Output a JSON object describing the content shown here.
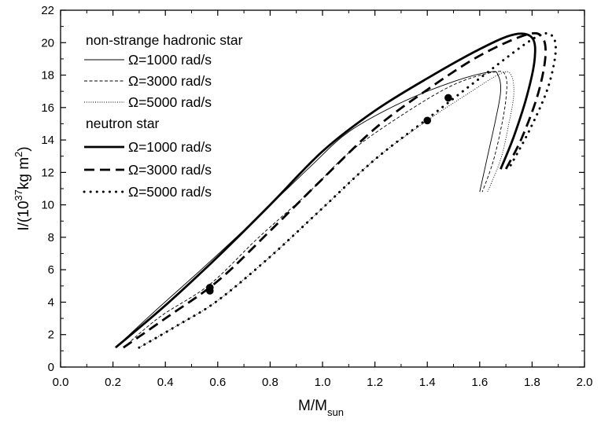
{
  "chart_data": {
    "type": "line",
    "xlabel": {
      "main": "M/M",
      "sub": "sun"
    },
    "ylabel": {
      "prefix": "I/(10",
      "sup1": "37",
      "mid": "kg m",
      "sup2": "2",
      "suffix": ")"
    },
    "xlim": [
      0.0,
      2.0
    ],
    "ylim": [
      0,
      22
    ],
    "xticks": [
      "0.0",
      "0.2",
      "0.4",
      "0.6",
      "0.8",
      "1.0",
      "1.2",
      "1.4",
      "1.6",
      "1.8",
      "2.0"
    ],
    "yticks": [
      "0",
      "2",
      "4",
      "6",
      "8",
      "10",
      "12",
      "14",
      "16",
      "18",
      "20",
      "22"
    ],
    "grid": false,
    "legend_position": "top-left",
    "legend_groups": [
      {
        "title": "non-strange hadronic star",
        "entries": [
          "Ω=1000 rad/s",
          "Ω=3000 rad/s",
          "Ω=5000 rad/s"
        ]
      },
      {
        "title": "neutron star",
        "entries": [
          "Ω=1000 rad/s",
          "Ω=3000 rad/s",
          "Ω=5000 rad/s"
        ]
      }
    ],
    "series": [
      {
        "group": "non-strange hadronic star",
        "name": "Ω=1000 rad/s",
        "style": "thin-solid",
        "points": [
          [
            0.21,
            1.2
          ],
          [
            0.35,
            3.3
          ],
          [
            0.55,
            6.2
          ],
          [
            0.75,
            9.2
          ],
          [
            0.95,
            12.3
          ],
          [
            1.1,
            14.5
          ],
          [
            1.3,
            16.3
          ],
          [
            1.5,
            17.6
          ],
          [
            1.64,
            18.2
          ],
          [
            1.67,
            18.0
          ],
          [
            1.68,
            17.0
          ],
          [
            1.66,
            15.2
          ],
          [
            1.63,
            13.0
          ],
          [
            1.6,
            10.8
          ]
        ]
      },
      {
        "group": "non-strange hadronic star",
        "name": "Ω=3000 rad/s",
        "style": "thin-dash",
        "points": [
          [
            0.24,
            1.2
          ],
          [
            0.38,
            3.1
          ],
          [
            0.57,
            5.1
          ],
          [
            0.75,
            7.9
          ],
          [
            0.95,
            10.8
          ],
          [
            1.1,
            13.2
          ],
          [
            1.3,
            15.5
          ],
          [
            1.5,
            17.4
          ],
          [
            1.66,
            18.2
          ],
          [
            1.7,
            17.9
          ],
          [
            1.7,
            16.5
          ],
          [
            1.68,
            14.6
          ],
          [
            1.65,
            12.6
          ],
          [
            1.61,
            10.8
          ]
        ]
      },
      {
        "group": "non-strange hadronic star",
        "name": "Ω=5000 rad/s",
        "style": "thin-dot",
        "points": [
          [
            0.3,
            1.2
          ],
          [
            0.45,
            2.6
          ],
          [
            0.6,
            4.1
          ],
          [
            0.8,
            6.8
          ],
          [
            1.0,
            9.8
          ],
          [
            1.2,
            12.8
          ],
          [
            1.4,
            15.2
          ],
          [
            1.55,
            16.8
          ],
          [
            1.68,
            18.1
          ],
          [
            1.72,
            18.0
          ],
          [
            1.73,
            16.8
          ],
          [
            1.71,
            14.9
          ],
          [
            1.68,
            12.8
          ],
          [
            1.63,
            10.8
          ]
        ]
      },
      {
        "group": "neutron star",
        "name": "Ω=1000 rad/s",
        "style": "thick-solid",
        "points": [
          [
            0.21,
            1.2
          ],
          [
            0.4,
            3.8
          ],
          [
            0.6,
            6.8
          ],
          [
            0.8,
            10.0
          ],
          [
            1.0,
            13.3
          ],
          [
            1.2,
            15.8
          ],
          [
            1.4,
            17.8
          ],
          [
            1.6,
            19.6
          ],
          [
            1.73,
            20.5
          ],
          [
            1.8,
            20.3
          ],
          [
            1.81,
            19.0
          ],
          [
            1.78,
            16.7
          ],
          [
            1.73,
            14.2
          ],
          [
            1.68,
            12.2
          ]
        ]
      },
      {
        "group": "neutron star",
        "name": "Ω=3000 rad/s",
        "style": "thick-dash",
        "points": [
          [
            0.24,
            1.2
          ],
          [
            0.4,
            3.0
          ],
          [
            0.6,
            5.3
          ],
          [
            0.8,
            8.4
          ],
          [
            1.0,
            11.6
          ],
          [
            1.2,
            14.7
          ],
          [
            1.4,
            17.1
          ],
          [
            1.6,
            19.2
          ],
          [
            1.78,
            20.5
          ],
          [
            1.84,
            20.3
          ],
          [
            1.85,
            19.0
          ],
          [
            1.82,
            16.7
          ],
          [
            1.76,
            14.1
          ],
          [
            1.7,
            12.2
          ]
        ]
      },
      {
        "group": "neutron star",
        "name": "Ω=5000 rad/s",
        "style": "thick-dot",
        "points": [
          [
            0.3,
            1.2
          ],
          [
            0.45,
            2.6
          ],
          [
            0.6,
            4.1
          ],
          [
            0.8,
            6.8
          ],
          [
            1.0,
            9.8
          ],
          [
            1.2,
            12.8
          ],
          [
            1.4,
            15.3
          ],
          [
            1.6,
            17.8
          ],
          [
            1.8,
            20.2
          ],
          [
            1.87,
            20.5
          ],
          [
            1.89,
            19.5
          ],
          [
            1.86,
            17.2
          ],
          [
            1.79,
            14.6
          ],
          [
            1.71,
            12.2
          ]
        ]
      }
    ],
    "markers": [
      [
        0.57,
        4.9
      ],
      [
        0.57,
        4.7
      ],
      [
        1.4,
        15.2
      ],
      [
        1.48,
        16.6
      ]
    ]
  }
}
